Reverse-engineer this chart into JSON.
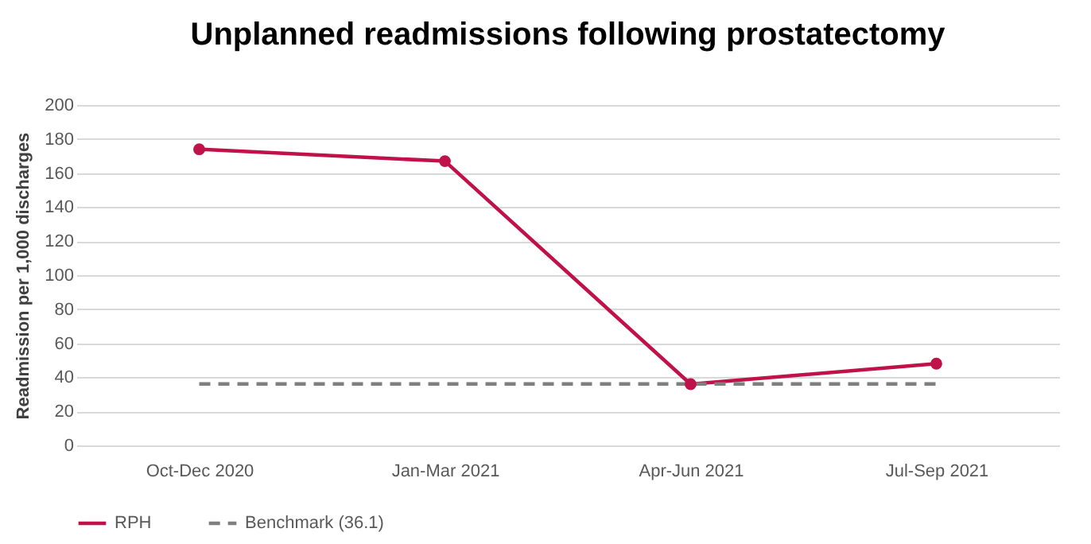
{
  "chart_data": {
    "type": "line",
    "title": "Unplanned readmissions following prostatectomy",
    "ylabel": "Readmission  per 1,000 discharges",
    "categories": [
      "Oct-Dec 2020",
      "Jan-Mar 2021",
      "Apr-Jun 2021",
      "Jul-Sep 2021"
    ],
    "series": [
      {
        "name": "RPH",
        "color": "#c0114a",
        "values": [
          174,
          167,
          36,
          48
        ],
        "marker": "circle",
        "line_style": "solid"
      },
      {
        "name": "Benchmark (36.1)",
        "color": "#7f7f7f",
        "values": [
          36.1,
          36.1,
          36.1,
          36.1
        ],
        "marker": "none",
        "line_style": "dashed"
      }
    ],
    "ylim": [
      0,
      200
    ],
    "yticks": [
      0,
      20,
      40,
      60,
      80,
      100,
      120,
      140,
      160,
      180,
      200
    ],
    "grid": "y",
    "legend": "bottom"
  }
}
